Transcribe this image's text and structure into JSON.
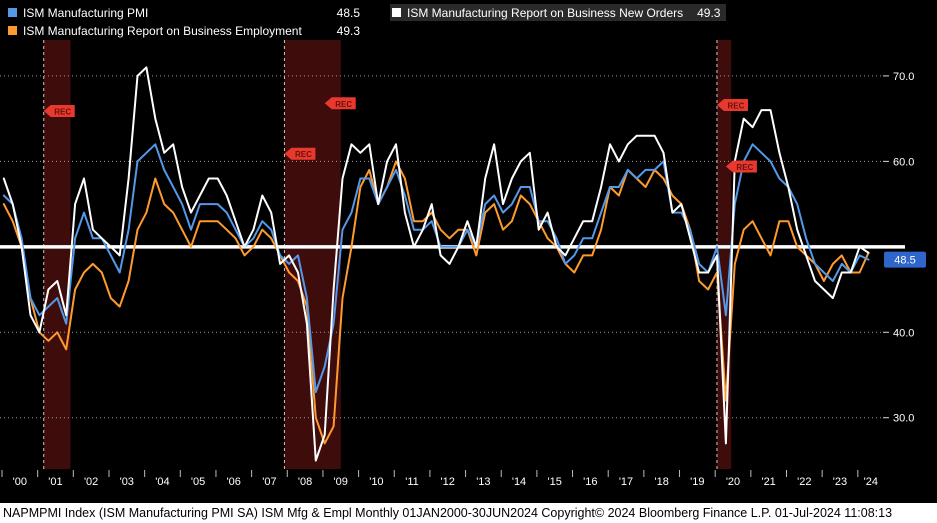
{
  "window": {
    "status_text": "NAPMPMI Index (ISM Manufacturing PMI SA) ISM Mfg & Empl  Monthly 01JAN2000-30JUN2024  Copyright© 2024 Bloomberg Finance L.P.  01-Jul-2024 11:08:13"
  },
  "chart_data": {
    "type": "line",
    "title": "",
    "x_start": 2000.05,
    "x_step": 0.25,
    "xlim": [
      2000,
      2024.65
    ],
    "ylim": [
      24,
      73.5
    ],
    "y_ticks": [
      70,
      60,
      40,
      30
    ],
    "y_tick_labels": [
      "70.0",
      "60.0",
      "40.0",
      "30.0"
    ],
    "emphasis_line": 50,
    "grid": true,
    "legend_position": "top",
    "last_value_badge": {
      "value": "48.5",
      "at": 48.5,
      "color": "#2f66cc"
    },
    "band_color": "#3f0c0c",
    "rec_flag_color": "#e8392e",
    "rec_flag_text": "REC",
    "x_axis_years": [
      "'00",
      "'01",
      "'02",
      "'03",
      "'04",
      "'05",
      "'06",
      "'07",
      "'08",
      "'09",
      "'10",
      "'11",
      "'12",
      "'13",
      "'14",
      "'15",
      "'16",
      "'17",
      "'18",
      "'19",
      "'20",
      "'21",
      "'22",
      "'23",
      "'24"
    ],
    "recession_bands": [
      {
        "from": 2001.17,
        "to": 2001.92
      },
      {
        "from": 2007.92,
        "to": 2009.5
      },
      {
        "from": 2020.05,
        "to": 2020.45
      }
    ],
    "rec_markers": [
      {
        "x": 2001.17,
        "y": 66.6
      },
      {
        "x": 2007.92,
        "y": 61.6
      },
      {
        "x": 2009.05,
        "y": 67.5
      },
      {
        "x": 2020.05,
        "y": 67.3
      },
      {
        "x": 2020.3,
        "y": 60.1
      }
    ],
    "series": [
      {
        "key": "employment",
        "name": "ISM Manufacturing Report on Business Employment",
        "last": "49.3",
        "color": "#ff9b2e",
        "width": 2,
        "values": [
          55,
          53,
          50,
          44,
          40,
          39,
          40,
          38,
          45,
          47,
          48,
          47,
          44,
          43,
          46,
          52,
          54,
          58,
          55,
          54,
          52,
          50,
          53,
          53,
          53,
          52,
          51,
          49,
          50,
          52,
          51,
          49,
          47,
          46,
          43,
          30,
          27,
          29,
          44,
          50,
          57,
          59,
          55,
          57,
          60,
          58,
          53,
          53,
          54,
          52,
          51,
          52,
          52,
          49,
          54,
          55,
          52,
          53,
          56,
          55,
          53,
          51,
          50,
          48,
          47,
          49,
          49,
          52,
          57,
          56,
          59,
          58,
          57,
          59,
          58,
          56,
          55,
          52,
          46,
          45,
          47,
          32,
          48,
          52,
          53,
          51,
          49,
          53,
          53,
          50,
          49,
          48,
          46,
          48,
          49,
          47,
          47,
          49.3
        ]
      },
      {
        "key": "pmi",
        "name": "ISM Manufacturing PMI",
        "last": "48.5",
        "color": "#5498e8",
        "width": 2,
        "values": [
          56,
          55,
          51,
          44,
          42,
          43,
          44,
          41,
          51,
          54,
          51,
          51,
          49,
          47,
          52,
          60,
          61,
          62,
          59,
          57,
          55,
          52,
          55,
          55,
          55,
          54,
          52,
          50,
          51,
          53,
          52,
          49,
          48,
          49,
          44,
          33,
          36,
          41,
          52,
          54,
          58,
          58,
          55,
          57,
          59,
          56,
          52,
          52,
          53,
          50,
          50,
          50,
          52,
          50,
          55,
          56,
          54,
          55,
          57,
          57,
          53,
          53,
          51,
          48,
          49,
          51,
          51,
          54,
          57,
          57,
          59,
          58,
          59,
          59,
          60,
          54,
          54,
          52,
          48,
          47,
          50,
          42,
          55,
          60,
          62,
          61,
          60,
          58,
          57,
          55,
          51,
          48,
          47,
          46,
          48,
          47,
          49,
          48.5
        ]
      },
      {
        "key": "new_orders",
        "name": "ISM Manufacturing Report on Business New Orders",
        "last": "49.3",
        "color": "#ffffff",
        "width": 2,
        "values": [
          58,
          55,
          50,
          42,
          40,
          45,
          46,
          42,
          55,
          58,
          52,
          51,
          50,
          49,
          58,
          70,
          71,
          65,
          61,
          62,
          57,
          54,
          56,
          58,
          58,
          56,
          53,
          50,
          52,
          56,
          54,
          48,
          49,
          47,
          41,
          25,
          28,
          45,
          58,
          62,
          61,
          62,
          55,
          60,
          62,
          54,
          50,
          52,
          55,
          49,
          48,
          50,
          53,
          50,
          58,
          62,
          55,
          58,
          60,
          61,
          52,
          54,
          50,
          49,
          51,
          53,
          53,
          57,
          62,
          60,
          62,
          63,
          63,
          63,
          61,
          54,
          55,
          51,
          47,
          47,
          49,
          27,
          60,
          65,
          64,
          66,
          66,
          61,
          57,
          52,
          49,
          46,
          45,
          44,
          47,
          47,
          50,
          49.3
        ]
      }
    ]
  }
}
